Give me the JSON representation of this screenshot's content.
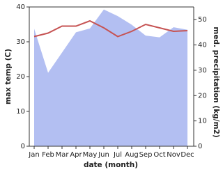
{
  "chart_data": {
    "type": "line",
    "categories": [
      "Jan",
      "Feb",
      "Mar",
      "Apr",
      "May",
      "Jun",
      "Jul",
      "Aug",
      "Sep",
      "Oct",
      "Nov",
      "Dec"
    ],
    "series": [
      {
        "type": "area",
        "axis": "y2",
        "color": "#b3bff2",
        "values": [
          46.4,
          29,
          37,
          45,
          46.5,
          54,
          51.4,
          48,
          43.7,
          43,
          47,
          46
        ]
      },
      {
        "type": "line",
        "color": "#c65353",
        "values": [
          31.5,
          32.5,
          34.5,
          34.5,
          36,
          34,
          31.5,
          33,
          35,
          34,
          33,
          33.2
        ]
      }
    ],
    "x_label": "date (month)",
    "y_label": "max temp (C)",
    "y2_label": "med. precipitation (kg/m2)",
    "ylim": [
      0,
      40
    ],
    "yticks": [
      0,
      10,
      20,
      30,
      40
    ],
    "y2lim": [
      0,
      55
    ],
    "y2ticks": [
      0,
      10,
      20,
      30,
      40,
      50
    ]
  }
}
